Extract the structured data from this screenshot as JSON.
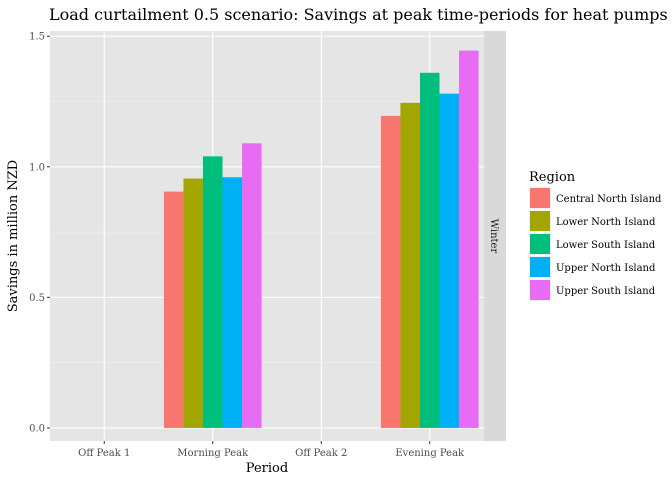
{
  "chart_data": {
    "type": "bar",
    "title": "Load curtailment 0.5 scenario: Savings at peak time-periods for heat pumps in winter",
    "xlabel": "Period",
    "ylabel": "Savings in million NZD",
    "categories": [
      "Off Peak 1",
      "Morning Peak",
      "Off Peak 2",
      "Evening Peak"
    ],
    "ylim": [
      -0.05,
      1.52
    ],
    "yticks": [
      0.0,
      0.5,
      1.0,
      1.5
    ],
    "ytick_labels": [
      "0.0",
      "0.5",
      "1.0",
      "1.5"
    ],
    "facet_label": "Winter",
    "legend_title": "Region",
    "legend_position": "right",
    "grid": true,
    "series": [
      {
        "name": "Central North Island",
        "color": "#F8766D",
        "values": [
          0,
          0.905,
          0,
          1.195
        ]
      },
      {
        "name": "Lower North Island",
        "color": "#A3A500",
        "values": [
          0,
          0.955,
          0,
          1.245
        ]
      },
      {
        "name": "Lower South Island",
        "color": "#00BF7D",
        "values": [
          0,
          1.04,
          0,
          1.36
        ]
      },
      {
        "name": "Upper North Island",
        "color": "#00B0F6",
        "values": [
          0,
          0.96,
          0,
          1.28
        ]
      },
      {
        "name": "Upper South Island",
        "color": "#E76BF3",
        "values": [
          0,
          1.09,
          0,
          1.445
        ]
      }
    ]
  }
}
